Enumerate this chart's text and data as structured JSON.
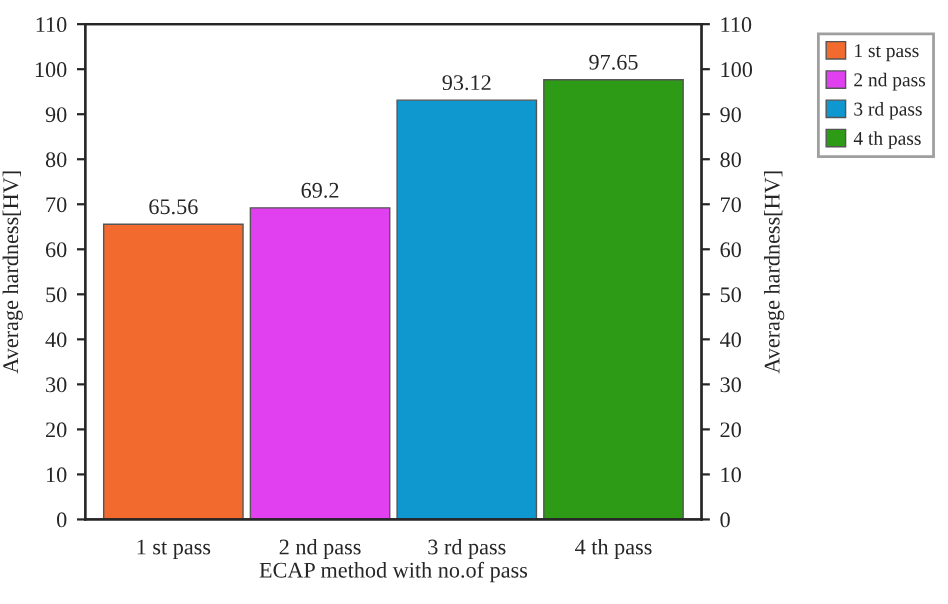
{
  "chart_data": {
    "type": "bar",
    "xlabel": "ECAP method with no.of pass",
    "ylabel": "Average hardness[HV]",
    "y2label": "Average hardness[HV]",
    "categories": [
      "1 st pass",
      "2 nd pass",
      "3 rd pass",
      "4 th pass"
    ],
    "series": [
      {
        "name": "1 st pass",
        "color": "#f26a2e",
        "values": [
          65.56,
          null,
          null,
          null
        ]
      },
      {
        "name": "2 nd pass",
        "color": "#e040f0",
        "values": [
          null,
          69.2,
          null,
          null
        ]
      },
      {
        "name": "3 rd pass",
        "color": "#0f97d0",
        "values": [
          null,
          null,
          93.12,
          null
        ]
      },
      {
        "name": "4 th pass",
        "color": "#2e9b16",
        "values": [
          null,
          null,
          null,
          97.65
        ]
      }
    ],
    "data_labels": true,
    "ylim": [
      0,
      110
    ],
    "yticks": [
      0,
      10,
      20,
      30,
      40,
      50,
      60,
      70,
      80,
      90,
      100,
      110
    ],
    "y2lim": [
      0,
      110
    ],
    "y2ticks": [
      0,
      10,
      20,
      30,
      40,
      50,
      60,
      70,
      80,
      90,
      100,
      110
    ],
    "legend": "right",
    "grid": false
  }
}
